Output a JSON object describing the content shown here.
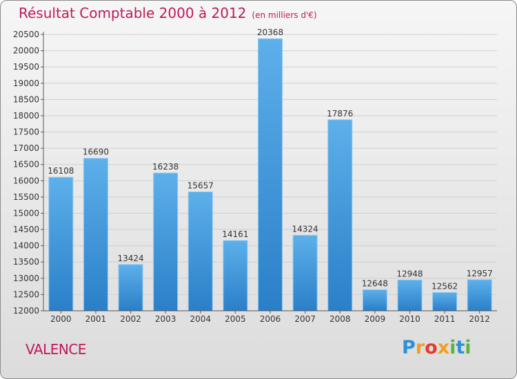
{
  "chart_data": {
    "type": "bar",
    "title": "Résultat Comptable 2000 à 2012",
    "subtitle": "(en milliers d'€)",
    "categories": [
      "2000",
      "2001",
      "2002",
      "2003",
      "2004",
      "2005",
      "2006",
      "2007",
      "2008",
      "2009",
      "2010",
      "2011",
      "2012"
    ],
    "values": [
      16108,
      16690,
      13424,
      16238,
      15657,
      14161,
      20368,
      14324,
      17876,
      12648,
      12948,
      12562,
      12957
    ],
    "xlabel": "",
    "ylabel": "",
    "ylim": [
      12000,
      20500
    ],
    "yticks": [
      12000,
      12500,
      13000,
      13500,
      14000,
      14500,
      15000,
      15500,
      16000,
      16500,
      17000,
      17500,
      18000,
      18500,
      19000,
      19500,
      20000,
      20500
    ],
    "grid": true,
    "bar_color": "#3c9be0"
  },
  "location": "VALENCE",
  "logo": {
    "chars": [
      "P",
      "r",
      "o",
      "x",
      "i",
      "t",
      "i"
    ]
  }
}
